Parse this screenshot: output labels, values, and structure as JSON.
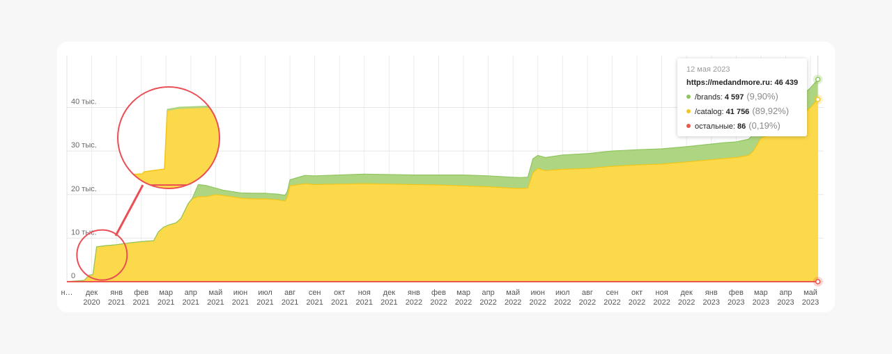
{
  "chart_data": {
    "type": "area",
    "stacked": true,
    "y_ticks": [
      {
        "value": 0,
        "label": "0"
      },
      {
        "value": 10000,
        "label": "10 тыс."
      },
      {
        "value": 20000,
        "label": "20 тыс."
      },
      {
        "value": 30000,
        "label": "30 тыс."
      },
      {
        "value": 40000,
        "label": "40 тыс."
      }
    ],
    "ylim": [
      0,
      50000
    ],
    "months": [
      [
        "н…",
        ""
      ],
      [
        "дек",
        "2020"
      ],
      [
        "янв",
        "2021"
      ],
      [
        "фев",
        "2021"
      ],
      [
        "мар",
        "2021"
      ],
      [
        "апр",
        "2021"
      ],
      [
        "май",
        "2021"
      ],
      [
        "июн",
        "2021"
      ],
      [
        "июл",
        "2021"
      ],
      [
        "авг",
        "2021"
      ],
      [
        "сен",
        "2021"
      ],
      [
        "окт",
        "2021"
      ],
      [
        "ноя",
        "2021"
      ],
      [
        "дек",
        "2021"
      ],
      [
        "янв",
        "2022"
      ],
      [
        "фев",
        "2022"
      ],
      [
        "мар",
        "2022"
      ],
      [
        "апр",
        "2022"
      ],
      [
        "май",
        "2022"
      ],
      [
        "июн",
        "2022"
      ],
      [
        "июл",
        "2022"
      ],
      [
        "авг",
        "2022"
      ],
      [
        "сен",
        "2022"
      ],
      [
        "окт",
        "2022"
      ],
      [
        "ноя",
        "2022"
      ],
      [
        "дек",
        "2022"
      ],
      [
        "янв",
        "2023"
      ],
      [
        "фев",
        "2023"
      ],
      [
        "мар",
        "2023"
      ],
      [
        "апр",
        "2023"
      ],
      [
        "май",
        "2023"
      ]
    ],
    "x": [
      0,
      0.7,
      0.9,
      1.05,
      1.2,
      1.6,
      1.65,
      2.0,
      2.5,
      3.0,
      3.5,
      3.7,
      3.9,
      4.1,
      4.4,
      4.6,
      4.9,
      5.05,
      5.3,
      5.6,
      6.0,
      6.3,
      7.0,
      7.5,
      8.0,
      8.5,
      8.8,
      8.9,
      9.0,
      9.6,
      10.0,
      11.0,
      12.0,
      13.0,
      14.0,
      15.0,
      16.0,
      17.0,
      17.9,
      18.3,
      18.6,
      18.8,
      19.0,
      19.3,
      20.0,
      21.0,
      22.0,
      23.0,
      24.0,
      25.0,
      26.0,
      26.5,
      27.0,
      27.5,
      27.7,
      28.0,
      28.5,
      29.0,
      29.4,
      29.6,
      30.0,
      30.3
    ],
    "series": [
      {
        "name": "/catalog",
        "color": "#fcd94a",
        "values": [
          0,
          300,
          1500,
          1600,
          8000,
          8300,
          8300,
          8500,
          8900,
          9200,
          9400,
          11500,
          12500,
          13000,
          13500,
          14500,
          18000,
          19000,
          19500,
          19500,
          20000,
          19800,
          19200,
          19000,
          19000,
          18800,
          18500,
          19500,
          22000,
          22500,
          22300,
          22400,
          22500,
          22400,
          22300,
          22200,
          22000,
          21800,
          21500,
          21400,
          21500,
          25000,
          26000,
          25500,
          25800,
          26000,
          26500,
          26800,
          27000,
          27500,
          28000,
          28300,
          28500,
          29000,
          30000,
          33000,
          34000,
          34500,
          36000,
          38000,
          40000,
          41756
        ]
      },
      {
        "name": "/brands",
        "color": "#a9d47f",
        "values": [
          0,
          0,
          0,
          0,
          0,
          0,
          0,
          0,
          0,
          0,
          0,
          0,
          0,
          0,
          0,
          0,
          0,
          0,
          2800,
          2600,
          1500,
          1200,
          1200,
          1300,
          1300,
          1300,
          1300,
          1300,
          1400,
          1900,
          2000,
          2100,
          2200,
          2200,
          2200,
          2300,
          2500,
          2500,
          2500,
          2500,
          2500,
          3200,
          3000,
          3000,
          3300,
          3400,
          3500,
          3500,
          3500,
          3500,
          3600,
          3600,
          3600,
          3700,
          3800,
          4000,
          4100,
          4200,
          4300,
          4400,
          4500,
          4597
        ]
      },
      {
        "name": "остальные",
        "color": "#e9574e",
        "values": [
          0,
          0,
          0,
          0,
          0,
          0,
          0,
          0,
          0,
          0,
          0,
          0,
          0,
          0,
          0,
          0,
          0,
          0,
          0,
          0,
          0,
          0,
          0,
          0,
          0,
          0,
          0,
          0,
          0,
          0,
          0,
          0,
          0,
          0,
          0,
          0,
          0,
          0,
          0,
          0,
          0,
          0,
          0,
          0,
          0,
          0,
          0,
          0,
          0,
          0,
          0,
          0,
          0,
          0,
          0,
          0,
          0,
          0,
          0,
          0,
          0,
          86
        ]
      }
    ]
  },
  "tooltip": {
    "date": "12 мая 2023",
    "site": "https://medandmore.ru:",
    "site_value": "46 439",
    "rows": [
      {
        "label": "/brands:",
        "value": "4 597",
        "pct": "(9,90%)",
        "color": "#8fc55f"
      },
      {
        "label": "/catalog:",
        "value": "41 756",
        "pct": "(89,92%)",
        "color": "#f5c623"
      },
      {
        "label": "остальные:",
        "value": "86",
        "pct": "(0,19%)",
        "color": "#e9574e"
      }
    ]
  }
}
